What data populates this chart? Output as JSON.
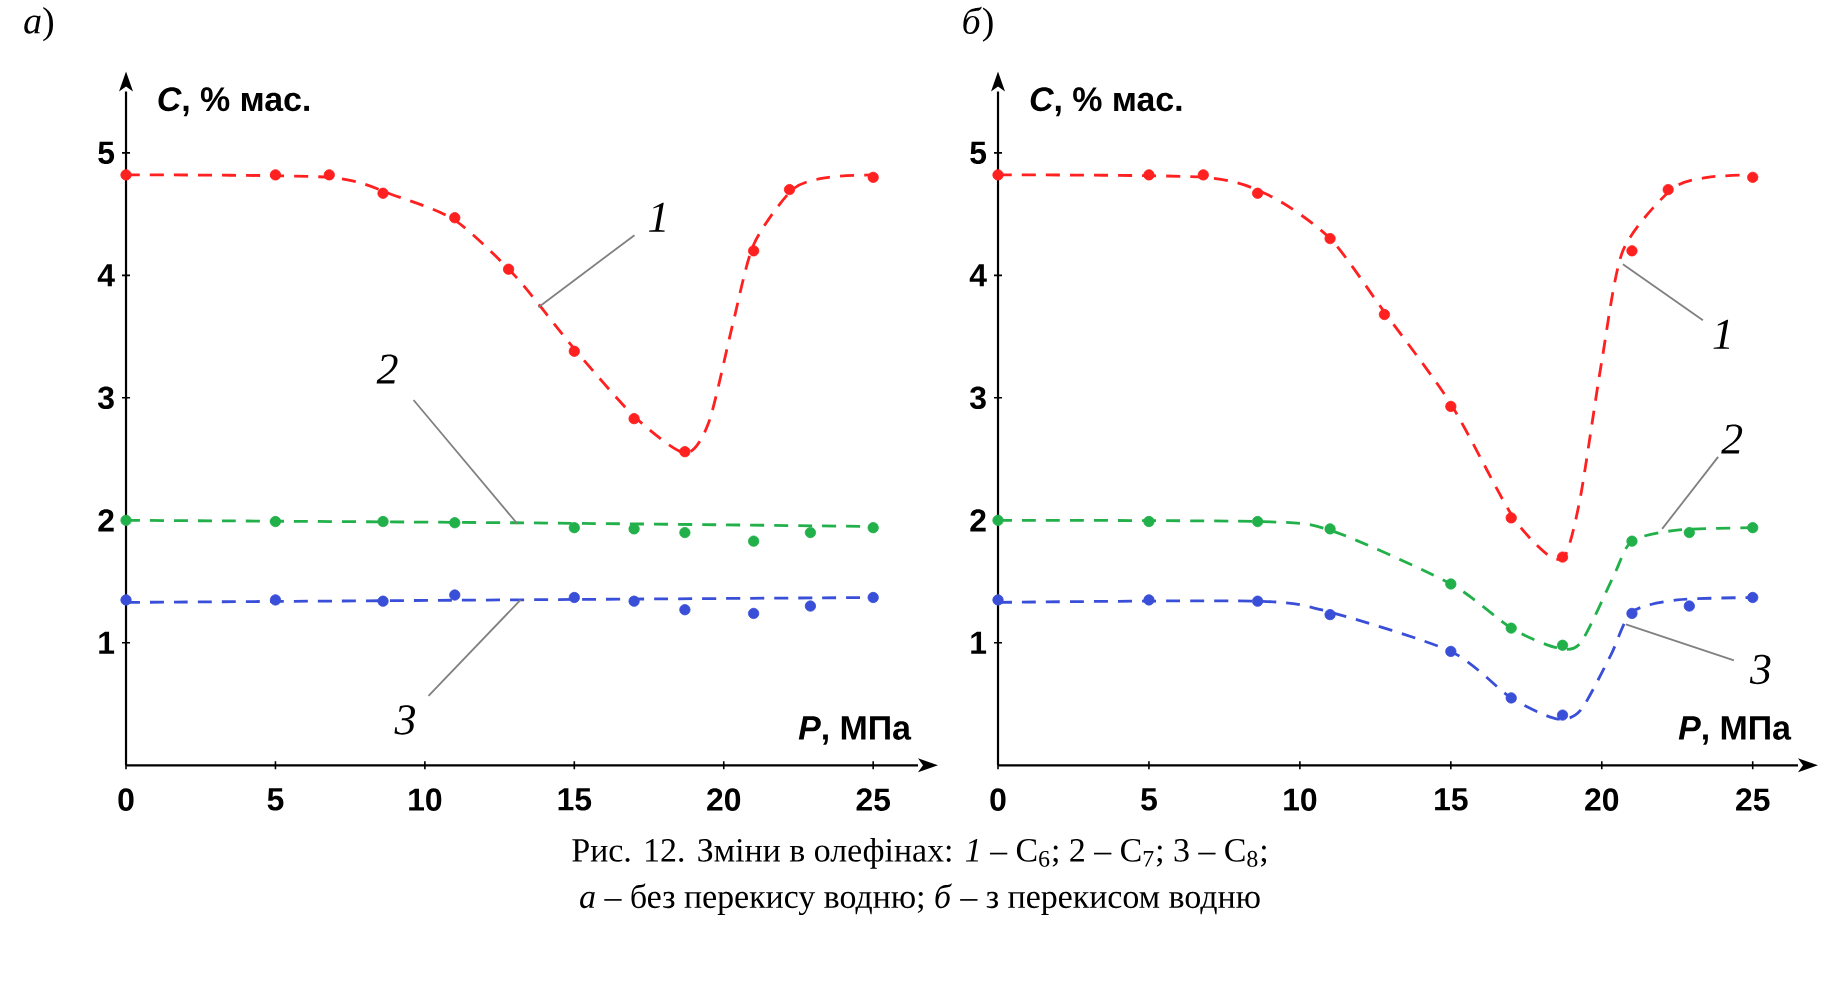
{
  "chart_data": [
    {
      "type": "scatter",
      "title": "*а*)",
      "xlabel": "*P*, МПа",
      "ylabel": "*C*, % мас.",
      "xlim": [
        0,
        26.5
      ],
      "ylim": [
        0,
        5.5
      ],
      "xticks": [
        0,
        5,
        10,
        15,
        20,
        25
      ],
      "yticks": [
        1,
        2,
        3,
        4,
        5
      ],
      "grid": false,
      "series": [
        {
          "marker": "circle",
          "color": "#ff2020",
          "x": [
            0,
            5,
            6.8,
            8.6,
            11,
            12.8,
            15,
            17,
            18.7,
            21,
            22.2,
            25
          ],
          "values": [
            4.82,
            4.82,
            4.82,
            4.67,
            4.47,
            4.05,
            3.38,
            2.83,
            2.56,
            4.2,
            4.7,
            4.8
          ]
        },
        {
          "marker": "circle",
          "color": "#22b04a",
          "x": [
            0,
            5,
            8.6,
            11,
            15,
            17,
            18.7,
            21,
            22.9,
            25
          ],
          "values": [
            2.0,
            1.99,
            1.99,
            1.98,
            1.94,
            1.93,
            1.9,
            1.83,
            1.9,
            1.94
          ]
        },
        {
          "marker": "circle",
          "color": "#3a4fd8",
          "x": [
            0,
            5,
            8.6,
            11,
            15,
            17,
            18.7,
            21,
            22.9,
            25
          ],
          "values": [
            1.35,
            1.35,
            1.34,
            1.39,
            1.37,
            1.34,
            1.27,
            1.24,
            1.3,
            1.37
          ]
        },
        {
          "type": "line",
          "marker": "none",
          "line_style": "dashed",
          "color": "#ff2020",
          "x": [
            0,
            6.8,
            9,
            11,
            13,
            15,
            17,
            18.7,
            19.5,
            20.3,
            21,
            22.3,
            23.5,
            25
          ],
          "values": [
            4.82,
            4.8,
            4.65,
            4.45,
            4.0,
            3.4,
            2.85,
            2.55,
            2.8,
            3.6,
            4.25,
            4.7,
            4.8,
            4.82
          ]
        },
        {
          "type": "line",
          "marker": "none",
          "line_style": "dashed",
          "color": "#22b04a",
          "x": [
            0,
            13,
            25
          ],
          "values": [
            2.0,
            1.98,
            1.95
          ]
        },
        {
          "type": "line",
          "marker": "none",
          "line_style": "dashed",
          "color": "#3a4fd8",
          "x": [
            0,
            25
          ],
          "values": [
            1.33,
            1.37
          ]
        }
      ],
      "annotations": [
        "Рис. 12. Зміни в олефінах: *1* – C$_{6}$; 2 – C$_{7}$; 3 – C$_{8}$;",
        "*а* – без перекису водню; *б* – з перекисом водню",
        {
          "text": "*1*",
          "x": 13.8,
          "y": 3.74
        },
        {
          "text": "*2*",
          "x": 13.1,
          "y": 1.97
        },
        {
          "text": "*3*",
          "x": 13.2,
          "y": 1.35
        }
      ]
    },
    {
      "type": "scatter",
      "title": "*б*)",
      "xlabel": "*P*, МПа",
      "ylabel": "*C*, % мас.",
      "xlim": [
        0,
        26.5
      ],
      "ylim": [
        0,
        5.5
      ],
      "xticks": [
        0,
        5,
        10,
        15,
        20,
        25
      ],
      "yticks": [
        1,
        2,
        3,
        4,
        5
      ],
      "grid": false,
      "series": [
        {
          "marker": "circle",
          "color": "#ff2020",
          "x": [
            0,
            5,
            6.8,
            8.6,
            11,
            12.8,
            15,
            17,
            18.7,
            21,
            22.2,
            25
          ],
          "values": [
            4.82,
            4.82,
            4.82,
            4.67,
            4.3,
            3.68,
            2.93,
            2.02,
            1.7,
            4.2,
            4.7,
            4.8
          ]
        },
        {
          "marker": "circle",
          "color": "#22b04a",
          "x": [
            0,
            5,
            8.6,
            11,
            15,
            17,
            18.7,
            21,
            22.9,
            25
          ],
          "values": [
            2.0,
            1.99,
            1.99,
            1.93,
            1.48,
            1.12,
            0.98,
            1.83,
            1.9,
            1.94
          ]
        },
        {
          "marker": "circle",
          "color": "#3a4fd8",
          "x": [
            0,
            5,
            8.6,
            11,
            15,
            17,
            18.7,
            21,
            22.9,
            25
          ],
          "values": [
            1.35,
            1.35,
            1.34,
            1.23,
            0.93,
            0.55,
            0.41,
            1.24,
            1.3,
            1.37
          ]
        },
        {
          "type": "line",
          "marker": "none",
          "line_style": "dashed",
          "color": "#ff2020",
          "x": [
            0,
            6.8,
            9,
            11,
            12.8,
            15,
            17,
            18.2,
            18.8,
            19.3,
            20.0,
            20.7,
            22.3,
            23.5,
            25
          ],
          "values": [
            4.82,
            4.8,
            4.65,
            4.3,
            3.7,
            2.95,
            2.05,
            1.72,
            1.72,
            2.2,
            3.3,
            4.2,
            4.7,
            4.8,
            4.82
          ]
        },
        {
          "type": "line",
          "marker": "none",
          "line_style": "dashed",
          "color": "#22b04a",
          "x": [
            0,
            8.6,
            11,
            15,
            17,
            18.5,
            19.3,
            20.4,
            21,
            22.5,
            25
          ],
          "values": [
            2.0,
            1.99,
            1.92,
            1.48,
            1.12,
            0.96,
            1.0,
            1.55,
            1.83,
            1.92,
            1.94
          ]
        },
        {
          "type": "line",
          "marker": "none",
          "line_style": "dashed",
          "color": "#3a4fd8",
          "x": [
            0,
            8.6,
            11,
            15,
            17,
            18.5,
            19.3,
            20.3,
            21,
            22.5,
            25
          ],
          "values": [
            1.33,
            1.34,
            1.25,
            0.93,
            0.55,
            0.38,
            0.45,
            0.9,
            1.25,
            1.35,
            1.37
          ]
        }
      ],
      "annotations": [
        {
          "text": "*1*",
          "x": 20.7,
          "y": 4.09
        },
        {
          "text": "*2*",
          "x": 22.0,
          "y": 1.93
        },
        {
          "text": "*3*",
          "x": 20.8,
          "y": 1.15
        }
      ]
    }
  ]
}
